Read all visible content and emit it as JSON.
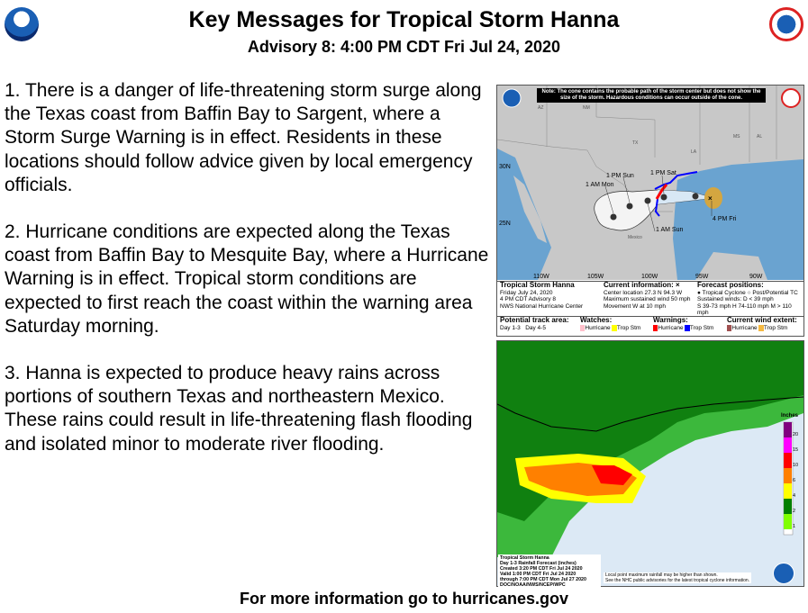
{
  "header": {
    "title": "Key Messages for Tropical Storm Hanna",
    "subtitle": "Advisory 8:  4:00 PM CDT Fri Jul 24, 2020",
    "left_logo": "NOAA",
    "right_logo": "NATIONAL WEATHER SERVICE"
  },
  "messages": [
    "1. There is a danger of life-threatening storm surge along the Texas coast from Baffin Bay to Sargent, where a Storm Surge Warning is in effect. Residents in these locations should follow advice given by local emergency officials.",
    "2. Hurricane conditions are expected along the Texas coast from Baffin Bay to Mesquite Bay, where a Hurricane Warning is in effect. Tropical storm conditions are expected to first reach the coast within the warning area Saturday morning.",
    "3. Hanna is expected to produce heavy rains across portions of southern Texas and northeastern Mexico. These rains could result in life-threatening flash flooding and isolated minor to moderate river flooding."
  ],
  "cone_map": {
    "note": "Note: The cone contains the probable path of the storm center but does not show the size of the storm. Hazardous conditions can occur outside of the cone.",
    "lat_labels": [
      "30N",
      "25N"
    ],
    "lon_labels": [
      "110W",
      "105W",
      "100W",
      "95W",
      "90W"
    ],
    "state_labels": [
      "AZ",
      "NM",
      "TX",
      "LA",
      "MS",
      "AL",
      "Mexico"
    ],
    "positions": [
      "4 PM Fri",
      "1 PM Sat",
      "1 AM Sun",
      "1 PM Sun",
      "1 AM Mon"
    ],
    "storm_title": "Tropical Storm Hanna",
    "storm_lines": [
      "Friday July 24, 2020",
      "4 PM CDT Advisory 8",
      "NWS National Hurricane Center"
    ],
    "current_title": "Current information: ×",
    "current_lines": [
      "Center location 27.3 N 94.3 W",
      "Maximum sustained wind 50 mph",
      "Movement W at 10 mph"
    ],
    "forecast_title": "Forecast positions:",
    "forecast_lines": [
      "● Tropical Cyclone  ○ Post/Potential TC",
      "Sustained winds:          D < 39 mph",
      "S 39-73 mph  H 74-110 mph  M > 110 mph"
    ],
    "legend": {
      "track_title": "Potential track area:",
      "day13": "Day 1-3",
      "day45": "Day 4-5",
      "watches_title": "Watches:",
      "warnings_title": "Warnings:",
      "wind_title": "Current wind extent:",
      "hurricane": "Hurricane",
      "tropstm": "Trop Stm"
    },
    "colors": {
      "hurricane_watch": "#ffc0cb",
      "ts_watch": "#ffff00",
      "hurricane_warning": "#ff0000",
      "ts_warning": "#0000ff",
      "hurricane_wind": "#a05050",
      "ts_wind": "#f5b942",
      "ocean": "#6aa3d0",
      "land": "#c8c8c8"
    }
  },
  "rain_map": {
    "legend_title": "Inches",
    "legend_ticks": [
      "20",
      "15",
      "10",
      "6",
      "4",
      "2",
      "1"
    ],
    "legend_colors": [
      "#800080",
      "#ff00ff",
      "#ff0000",
      "#ff8000",
      "#ffff00",
      "#008000",
      "#80ff00"
    ],
    "caption_lines": [
      "Tropical Storm Hanna",
      "Day 1-3 Rainfall Forecast (inches)",
      "Created 3:20 PM CDT Fri Jul 24 2020",
      "Valid 1:00 PM CDT Fri Jul 24 2020",
      "through 7:00 PM CDT Mon Jul 27 2020",
      "DOC/NOAA/NWS/NCEP/WPC"
    ],
    "disclaimer_lines": [
      "Local point maximum rainfall may be higher than shown.",
      "See the NHC public advisories for the latest tropical cyclone information."
    ]
  },
  "footer": {
    "text": "For more information go to hurricanes.gov"
  }
}
